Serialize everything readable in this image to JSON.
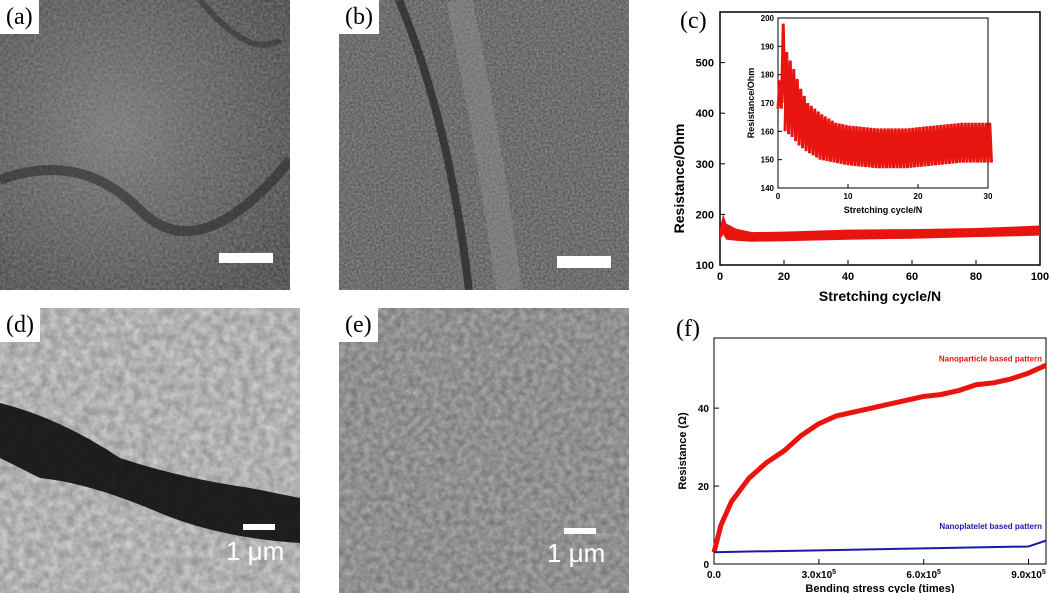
{
  "panels": {
    "a": {
      "label": "(a)"
    },
    "b": {
      "label": "(b)"
    },
    "c": {
      "label": "(c)"
    },
    "d": {
      "label": "(d)",
      "scale_text": "1 μm"
    },
    "e": {
      "label": "(e)",
      "scale_text": "1 μm"
    },
    "f": {
      "label": "(f)"
    }
  },
  "colors": {
    "red": "#e8140f",
    "blue": "#1a1aa8"
  },
  "chart_data": [
    {
      "type": "line",
      "panel": "c",
      "xlabel": "Stretching cycle/N",
      "ylabel": "Resistance/Ohm",
      "xlim": [
        0,
        100
      ],
      "ylim": [
        100,
        600
      ],
      "xticks": [
        "0",
        "20",
        "40",
        "60",
        "80",
        "100"
      ],
      "yticks": [
        "100",
        "200",
        "300",
        "400",
        "500"
      ],
      "series": [
        {
          "x": [
            0,
            1,
            2,
            5,
            10,
            20,
            40,
            60,
            80,
            100
          ],
          "y_low": [
            150,
            160,
            150,
            148,
            146,
            147,
            150,
            152,
            155,
            158
          ],
          "y_high": [
            175,
            200,
            182,
            172,
            165,
            166,
            170,
            171,
            173,
            178
          ],
          "color": "red"
        }
      ],
      "inset": {
        "type": "line",
        "xlabel": "Stretching cycle/N",
        "ylabel": "Resistance/Ohm",
        "xlim": [
          0,
          30
        ],
        "ylim": [
          140,
          200
        ],
        "xticks": [
          "0",
          "10",
          "20",
          "30"
        ],
        "yticks": [
          "140",
          "150",
          "160",
          "170",
          "180",
          "190",
          "200"
        ],
        "envelope": {
          "x": [
            0,
            0.5,
            1,
            2,
            3,
            4,
            6,
            8,
            10,
            14,
            18,
            22,
            26,
            30
          ],
          "y_high": [
            178,
            198,
            188,
            182,
            175,
            170,
            166,
            163,
            162,
            161,
            161,
            162,
            163,
            163
          ],
          "y_low": [
            168,
            170,
            160,
            158,
            155,
            153,
            150,
            149,
            148,
            147,
            147,
            148,
            149,
            149
          ]
        }
      }
    },
    {
      "type": "line",
      "panel": "f",
      "xlabel": "Bending stress cycle (times)",
      "ylabel": "Resistance (Ω)",
      "xlim": [
        0,
        950000
      ],
      "ylim": [
        0,
        58
      ],
      "xticks": [
        {
          "value": 0,
          "label": "0.0"
        },
        {
          "value": 300000,
          "label": "3.0x10",
          "exp": "5"
        },
        {
          "value": 600000,
          "label": "6.0x10",
          "exp": "5"
        },
        {
          "value": 900000,
          "label": "9.0x10",
          "exp": "5"
        }
      ],
      "yticks": [
        "0",
        "20",
        "40"
      ],
      "series": [
        {
          "name": "Nanoparticle based pattern",
          "color": "red",
          "x": [
            0,
            20000,
            50000,
            100000,
            150000,
            200000,
            250000,
            300000,
            350000,
            400000,
            450000,
            500000,
            550000,
            600000,
            650000,
            700000,
            750000,
            800000,
            850000,
            900000,
            950000
          ],
          "y": [
            3,
            10,
            16,
            22,
            26,
            29,
            33,
            36,
            38,
            39,
            40,
            41,
            42,
            43,
            43.5,
            44.5,
            46,
            46.5,
            47.5,
            49,
            51
          ]
        },
        {
          "name": "Nanoplatelet based pattern",
          "color": "blue",
          "x": [
            0,
            100000,
            300000,
            600000,
            900000,
            950000
          ],
          "y": [
            3,
            3.2,
            3.5,
            4,
            4.5,
            6
          ]
        }
      ]
    }
  ]
}
